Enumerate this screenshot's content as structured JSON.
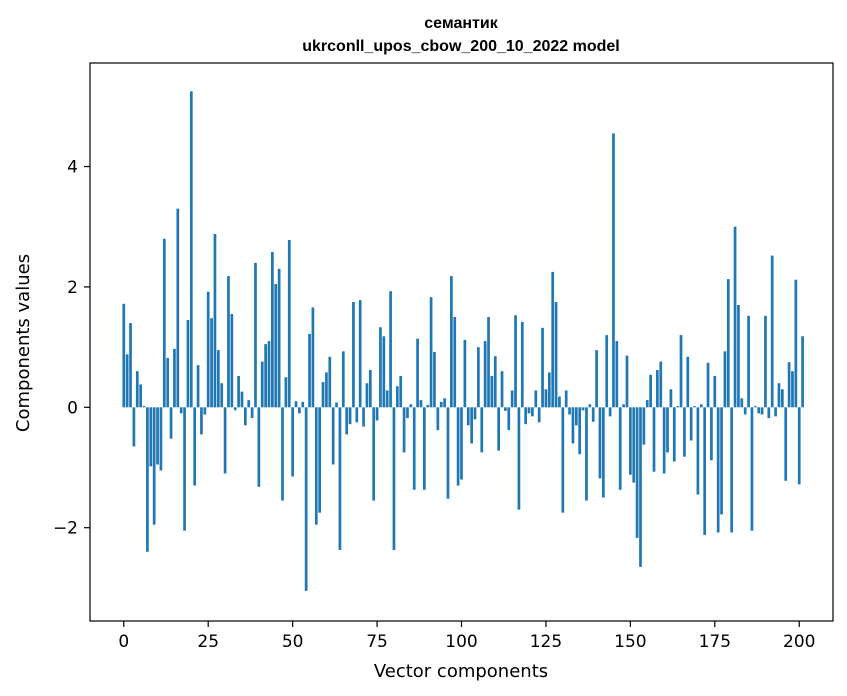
{
  "chart_data": {
    "type": "bar",
    "title_line1": "семантик",
    "title_line2": "ukrconll_upos_cbow_200_10_2022 model",
    "xlabel": "Vector components",
    "ylabel": "Components values",
    "xlim": [
      -10,
      210
    ],
    "ylim": [
      -3.55,
      5.72
    ],
    "xticks": [
      0,
      25,
      50,
      75,
      100,
      125,
      150,
      175,
      200
    ],
    "yticks": [
      -2,
      0,
      2,
      4
    ],
    "ytick_labels": [
      "−2",
      "0",
      "2",
      "4"
    ],
    "bar_color": "#1f77b4",
    "grid": false,
    "values": [
      1.72,
      0.88,
      1.4,
      -0.65,
      0.6,
      0.38,
      0.02,
      -2.4,
      -0.98,
      -1.95,
      -0.95,
      -1.05,
      2.8,
      0.82,
      -0.52,
      0.97,
      3.3,
      -0.1,
      -2.05,
      1.45,
      5.25,
      -1.3,
      0.7,
      -0.45,
      -0.12,
      1.92,
      1.48,
      2.88,
      0.95,
      0.4,
      -1.1,
      2.18,
      1.55,
      -0.05,
      0.52,
      0.26,
      -0.3,
      0.12,
      -0.18,
      2.4,
      -1.32,
      0.76,
      1.05,
      1.1,
      2.58,
      2.05,
      2.3,
      -1.55,
      0.5,
      2.78,
      -1.15,
      0.1,
      -0.1,
      0.09,
      -3.05,
      1.22,
      1.66,
      -1.95,
      -1.75,
      0.42,
      0.58,
      0.84,
      -0.95,
      0.08,
      -2.37,
      0.93,
      -0.45,
      -0.28,
      1.75,
      -0.25,
      1.78,
      -0.32,
      0.4,
      0.62,
      -1.55,
      -0.22,
      1.33,
      1.18,
      0.28,
      1.93,
      -2.37,
      0.35,
      0.52,
      -0.75,
      -0.18,
      0.05,
      -1.37,
      1.14,
      0.12,
      -1.37,
      0.04,
      1.83,
      0.92,
      -0.38,
      0.09,
      0.15,
      -1.52,
      2.18,
      1.5,
      -1.3,
      -1.2,
      1.12,
      -0.3,
      -0.6,
      -0.2,
      1.0,
      -0.75,
      1.1,
      1.5,
      0.52,
      0.85,
      -0.72,
      0.6,
      -0.06,
      -0.38,
      0.28,
      1.53,
      -1.7,
      1.42,
      -0.28,
      -0.1,
      -0.15,
      0.28,
      -0.25,
      1.32,
      0.3,
      0.58,
      2.25,
      1.75,
      0.18,
      -1.75,
      0.28,
      -0.12,
      -0.6,
      -0.3,
      -0.78,
      -0.05,
      -1.55,
      0.05,
      -0.24,
      0.95,
      -1.18,
      -1.5,
      1.2,
      -0.15,
      4.55,
      1.1,
      -1.37,
      0.05,
      0.86,
      -1.12,
      -1.25,
      -2.17,
      -2.65,
      -0.62,
      0.12,
      0.54,
      -1.07,
      0.62,
      0.76,
      -1.1,
      -0.75,
      0.3,
      -0.9,
      0.02,
      1.2,
      -0.82,
      0.84,
      -0.55,
      0.02,
      -1.45,
      0.05,
      -2.12,
      0.74,
      -0.88,
      0.52,
      -2.08,
      -1.78,
      0.93,
      2.13,
      -2.08,
      3.0,
      1.7,
      0.15,
      -0.12,
      1.52,
      -2.05,
      0.02,
      -0.1,
      -0.12,
      1.52,
      -0.18,
      2.52,
      -0.15,
      0.4,
      0.3,
      -1.22,
      0.75,
      0.6,
      2.12,
      -1.28,
      1.18
    ]
  }
}
